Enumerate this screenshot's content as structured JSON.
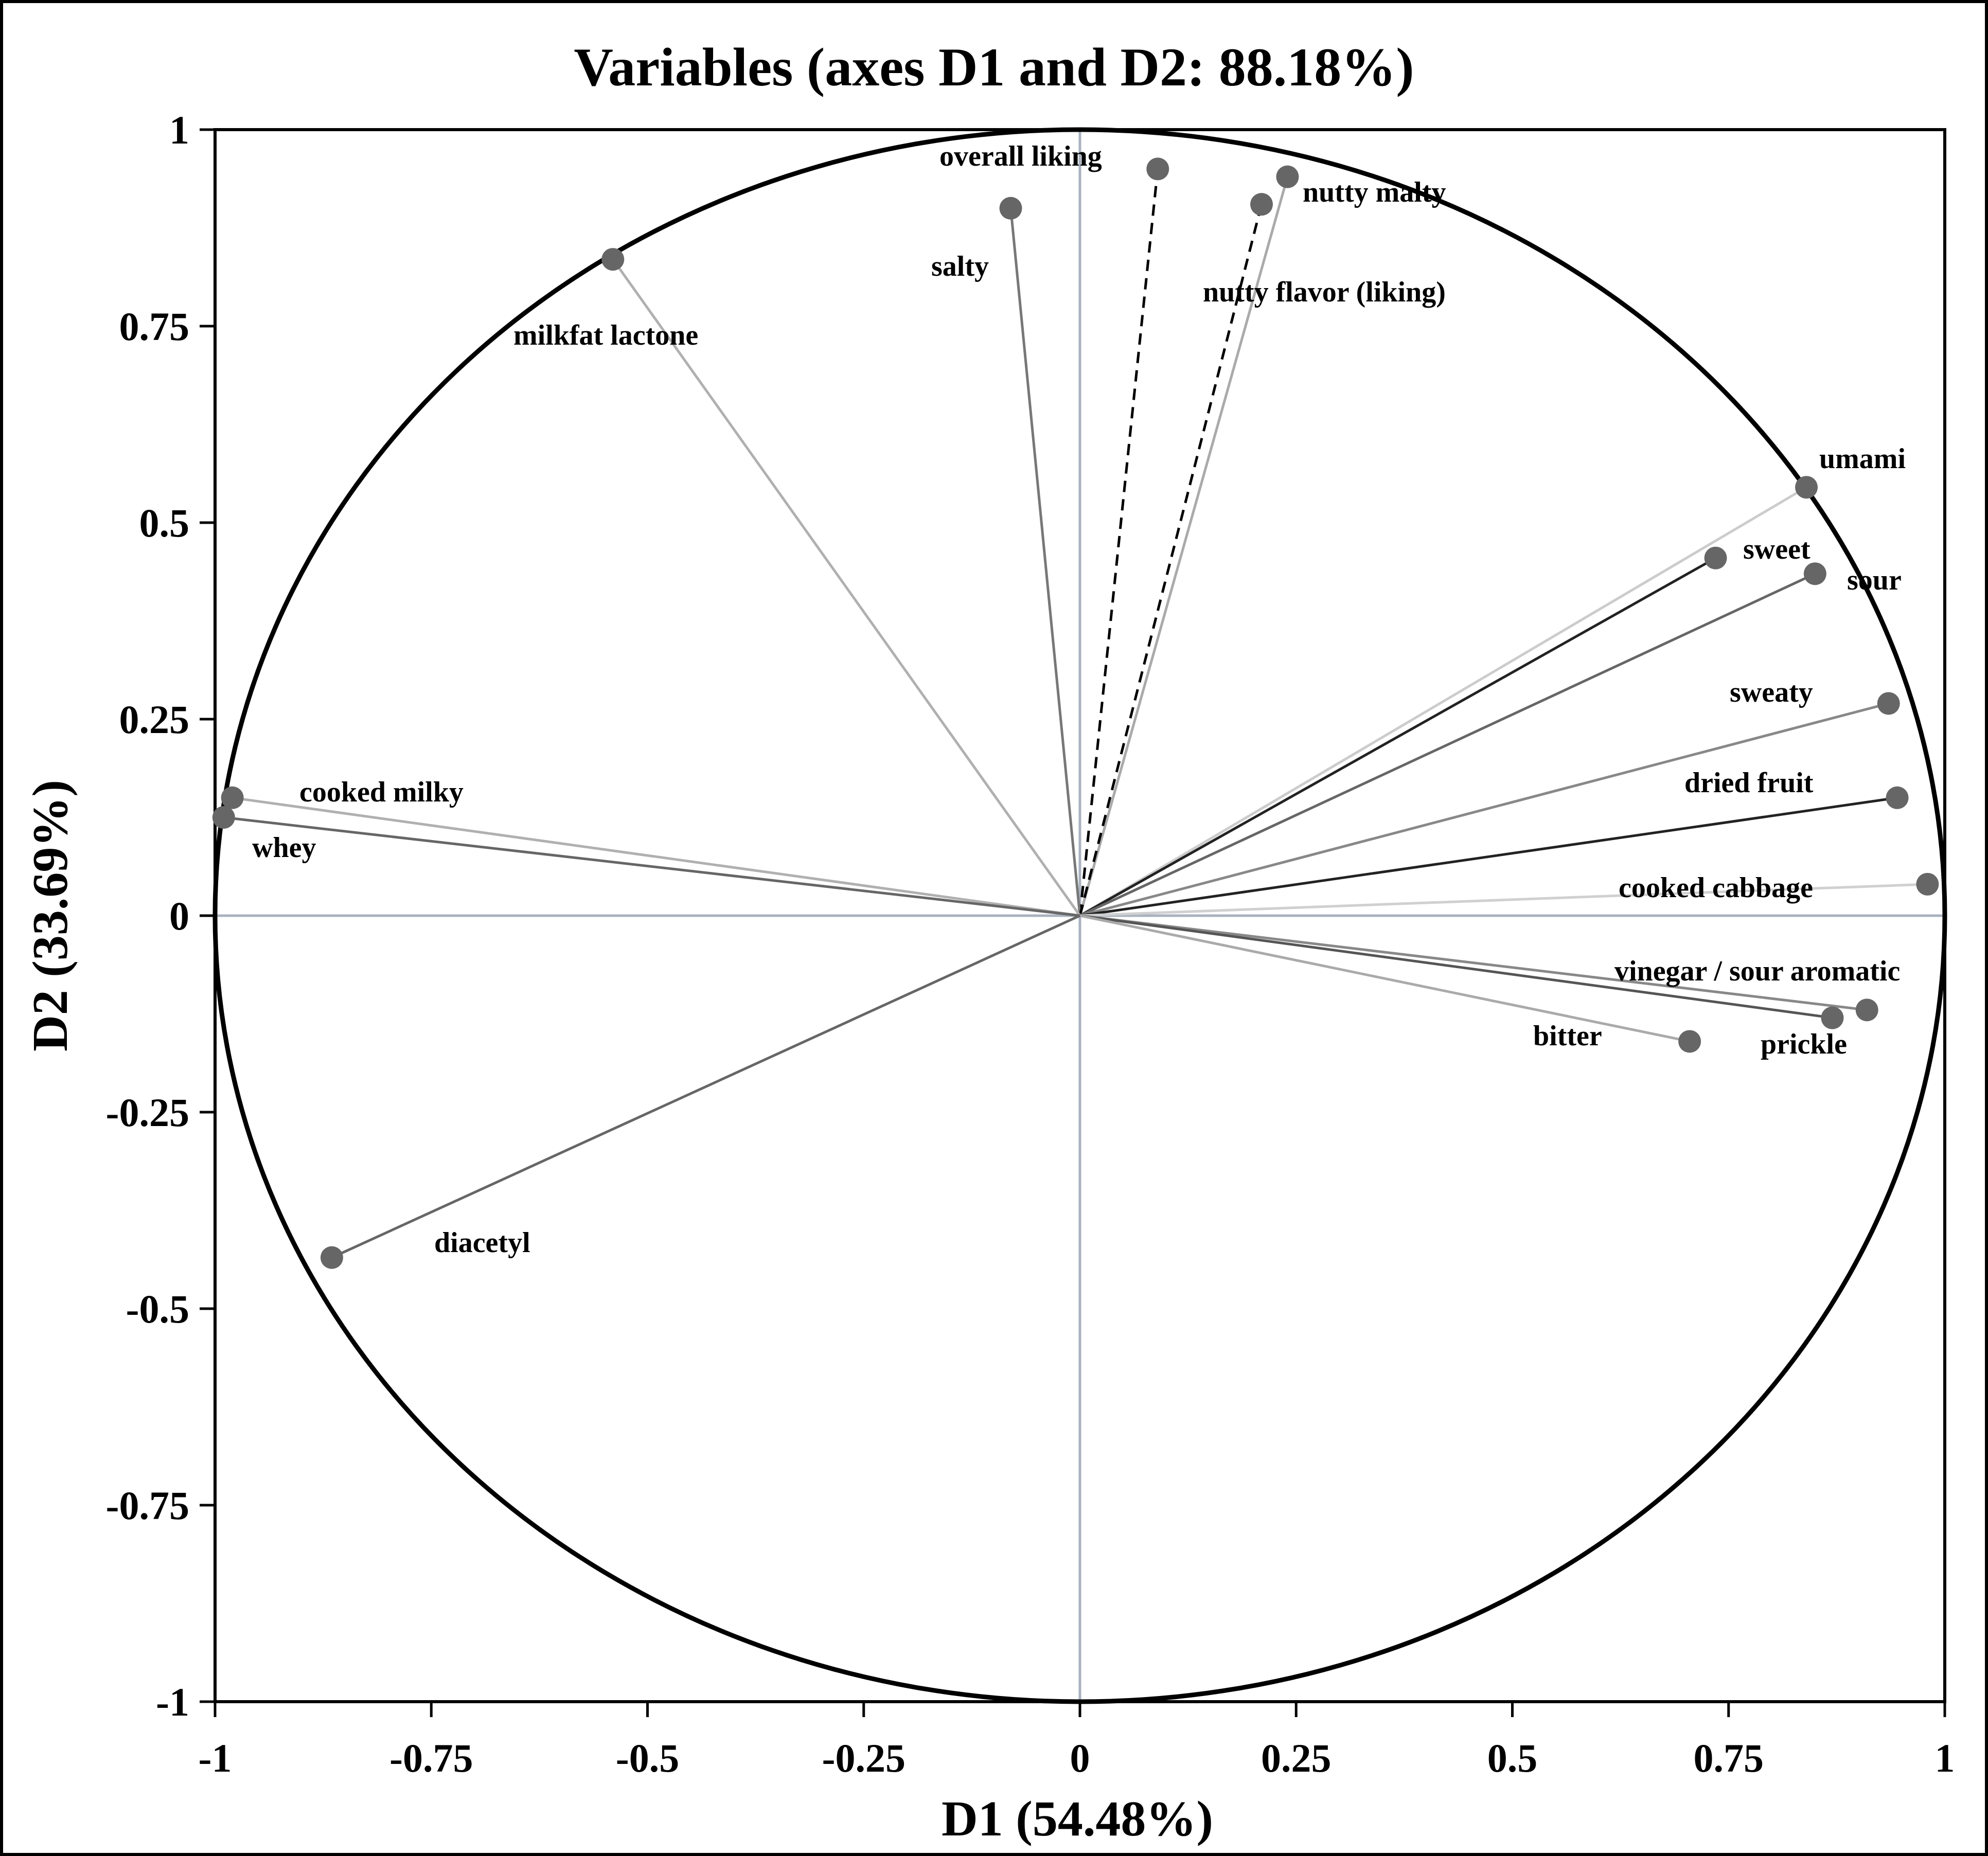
{
  "chart_data": {
    "type": "scatter",
    "title": "Variables (axes D1 and D2: 88.18%)",
    "xlabel": "D1 (54.48%)",
    "ylabel": "D2 (33.69%)",
    "xlim": [
      -1,
      1
    ],
    "ylim": [
      -1,
      1
    ],
    "xticks": [
      "-1",
      "-0.75",
      "-0.5",
      "-0.25",
      "0",
      "0.25",
      "0.5",
      "0.75",
      "1"
    ],
    "yticks": [
      "1",
      "0.75",
      "0.5",
      "0.25",
      "0",
      "-0.25",
      "-0.5",
      "-0.75",
      "-1"
    ],
    "variables": [
      {
        "name": "overall liking",
        "x": 0.09,
        "y": 0.95,
        "color": "#666666",
        "dashed": true
      },
      {
        "name": "salty",
        "x": -0.08,
        "y": 0.9,
        "color": "#777777",
        "dashed": false
      },
      {
        "name": "nutty malty",
        "x": 0.24,
        "y": 0.94,
        "color": "#aaaaaa",
        "dashed": false
      },
      {
        "name": "nutty flavor (liking)",
        "x": 0.21,
        "y": 0.905,
        "color": "#666666",
        "dashed": true
      },
      {
        "name": "milkfat lactone",
        "x": -0.54,
        "y": 0.835,
        "color": "#b0b0b0",
        "dashed": false
      },
      {
        "name": "umami",
        "x": 0.84,
        "y": 0.545,
        "color": "#cccccc",
        "dashed": false
      },
      {
        "name": "sweet",
        "x": 0.735,
        "y": 0.455,
        "color": "#222222",
        "dashed": false
      },
      {
        "name": "sour",
        "x": 0.85,
        "y": 0.435,
        "color": "#666666",
        "dashed": false
      },
      {
        "name": "sweaty",
        "x": 0.935,
        "y": 0.27,
        "color": "#888888",
        "dashed": false
      },
      {
        "name": "dried fruit",
        "x": 0.945,
        "y": 0.15,
        "color": "#222222",
        "dashed": false
      },
      {
        "name": "cooked cabbage",
        "x": 0.98,
        "y": 0.04,
        "color": "#d0d0d0",
        "dashed": false
      },
      {
        "name": "vinegar / sour aromatic",
        "x": 0.91,
        "y": -0.12,
        "color": "#888888",
        "dashed": false
      },
      {
        "name": "prickle",
        "x": 0.87,
        "y": -0.13,
        "color": "#555555",
        "dashed": false
      },
      {
        "name": "bitter",
        "x": 0.705,
        "y": -0.16,
        "color": "#aaaaaa",
        "dashed": false
      },
      {
        "name": "cooked milky",
        "x": -0.98,
        "y": 0.15,
        "color": "#b0b0b0",
        "dashed": false
      },
      {
        "name": "whey",
        "x": -0.99,
        "y": 0.125,
        "color": "#666666",
        "dashed": false
      },
      {
        "name": "diacetyl",
        "x": -0.865,
        "y": -0.435,
        "color": "#666666",
        "dashed": false
      }
    ]
  }
}
